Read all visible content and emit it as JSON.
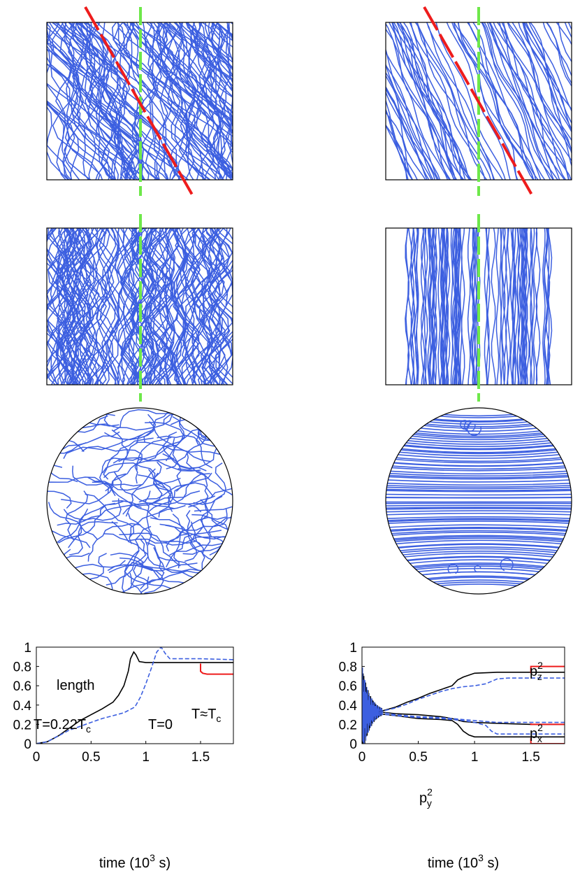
{
  "colors": {
    "tangle": "#3c5fe0",
    "black": "#000000",
    "dashed": "#3c5fe0",
    "marker": "#ee1c1c",
    "guide": "#6ee84a"
  },
  "panels": [
    {
      "id": "top-left",
      "kind": "tangle-rect",
      "random": true
    },
    {
      "id": "top-right",
      "kind": "tangle-rect",
      "random": false
    },
    {
      "id": "mid-left",
      "kind": "tangle-vertical",
      "random": true
    },
    {
      "id": "mid-right",
      "kind": "tangle-vertical",
      "random": false
    },
    {
      "id": "disc-left",
      "kind": "tangle-disc",
      "random": true
    },
    {
      "id": "disc-right",
      "kind": "tangle-disc",
      "random": false
    }
  ],
  "chart_data": [
    {
      "type": "line",
      "xlabel_main": "time (10",
      "xlabel_exp": "3",
      "xlabel_tail": " s)",
      "ylabel": "",
      "xlim": [
        0,
        1.8
      ],
      "ylim": [
        0,
        1
      ],
      "xticks": [
        "0",
        "0.5",
        "1",
        "1.5"
      ],
      "yticks": [
        "0",
        "0.2",
        "0.4",
        "0.6",
        "0.8",
        "1"
      ],
      "annotations": {
        "title": "length",
        "solid_label": "T=0.22T",
        "solid_label_sub": "c",
        "dashed_label": "T=0",
        "red_label": "T≈T",
        "red_label_sub": "c"
      },
      "series": [
        {
          "style": "solid-black",
          "x": [
            0,
            0.1,
            0.2,
            0.3,
            0.4,
            0.5,
            0.6,
            0.7,
            0.75,
            0.8,
            0.84,
            0.86,
            0.89,
            0.91,
            0.94,
            1.0,
            1.2,
            1.4,
            1.6,
            1.8
          ],
          "y": [
            0,
            0.02,
            0.08,
            0.16,
            0.24,
            0.3,
            0.36,
            0.43,
            0.5,
            0.6,
            0.75,
            0.88,
            0.95,
            0.92,
            0.85,
            0.84,
            0.84,
            0.84,
            0.84,
            0.84
          ]
        },
        {
          "style": "dashed-blue",
          "x": [
            0,
            0.1,
            0.2,
            0.3,
            0.4,
            0.5,
            0.6,
            0.7,
            0.8,
            0.9,
            0.95,
            1.0,
            1.05,
            1.1,
            1.14,
            1.18,
            1.22,
            1.3,
            1.5,
            1.8
          ],
          "y": [
            0,
            0.02,
            0.08,
            0.14,
            0.18,
            0.22,
            0.26,
            0.29,
            0.32,
            0.38,
            0.48,
            0.62,
            0.78,
            0.95,
            1.0,
            0.93,
            0.88,
            0.88,
            0.88,
            0.87
          ]
        },
        {
          "style": "red",
          "x": [
            1.5,
            1.5,
            1.52,
            1.56,
            1.6,
            1.8
          ],
          "y": [
            0.83,
            0.75,
            0.73,
            0.72,
            0.72,
            0.72
          ]
        }
      ]
    },
    {
      "type": "line",
      "xlabel_main": "time (10",
      "xlabel_exp": "3",
      "xlabel_tail": " s)",
      "ylabel": "",
      "xlim": [
        0,
        1.8
      ],
      "ylim": [
        0,
        1
      ],
      "xticks": [
        "0",
        "0.5",
        "1",
        "1.5"
      ],
      "yticks": [
        "0",
        "0.2",
        "0.4",
        "0.6",
        "0.8",
        "1"
      ],
      "annotations": {
        "pz": "p",
        "pz_sup": "2",
        "pz_sub": "z",
        "px": "p",
        "px_sup": "2",
        "px_sub": "x",
        "py": "p",
        "py_sup": "2",
        "py_sub": "y"
      },
      "series": [
        {
          "style": "solid-black",
          "name": "pz",
          "x": [
            0.15,
            0.3,
            0.4,
            0.5,
            0.6,
            0.7,
            0.8,
            0.85,
            0.9,
            1.0,
            1.2,
            1.5,
            1.8
          ],
          "y": [
            0.33,
            0.38,
            0.43,
            0.47,
            0.52,
            0.56,
            0.6,
            0.66,
            0.69,
            0.73,
            0.74,
            0.74,
            0.74
          ]
        },
        {
          "style": "dashed-blue",
          "name": "pz",
          "x": [
            0.15,
            0.3,
            0.4,
            0.5,
            0.6,
            0.7,
            0.8,
            0.9,
            1.0,
            1.1,
            1.2,
            1.3,
            1.5,
            1.8
          ],
          "y": [
            0.33,
            0.37,
            0.41,
            0.46,
            0.5,
            0.54,
            0.57,
            0.59,
            0.6,
            0.62,
            0.67,
            0.68,
            0.68,
            0.68
          ]
        },
        {
          "style": "solid-black",
          "name": "px",
          "x": [
            0.15,
            0.3,
            0.5,
            0.7,
            0.8,
            0.9,
            1.0,
            1.2,
            1.5,
            1.8
          ],
          "y": [
            0.33,
            0.31,
            0.3,
            0.28,
            0.26,
            0.23,
            0.22,
            0.21,
            0.2,
            0.2
          ]
        },
        {
          "style": "solid-black",
          "name": "py",
          "x": [
            0.15,
            0.3,
            0.5,
            0.7,
            0.8,
            0.85,
            0.9,
            0.95,
            1.0,
            1.2,
            1.5,
            1.8
          ],
          "y": [
            0.31,
            0.29,
            0.26,
            0.25,
            0.24,
            0.2,
            0.13,
            0.09,
            0.07,
            0.07,
            0.07,
            0.07
          ]
        },
        {
          "style": "dashed-blue",
          "name": "px",
          "x": [
            0.15,
            0.3,
            0.5,
            0.7,
            0.9,
            1.0,
            1.1,
            1.2,
            1.5,
            1.8
          ],
          "y": [
            0.33,
            0.3,
            0.28,
            0.27,
            0.25,
            0.24,
            0.23,
            0.22,
            0.22,
            0.22
          ]
        },
        {
          "style": "dashed-blue",
          "name": "py",
          "x": [
            0.15,
            0.3,
            0.5,
            0.7,
            0.9,
            1.0,
            1.1,
            1.15,
            1.2,
            1.5,
            1.8
          ],
          "y": [
            0.31,
            0.29,
            0.27,
            0.26,
            0.24,
            0.22,
            0.19,
            0.13,
            0.1,
            0.1,
            0.1
          ]
        },
        {
          "style": "red",
          "name": "pz",
          "x": [
            1.5,
            1.5,
            1.55,
            1.8
          ],
          "y": [
            0.73,
            0.8,
            0.8,
            0.8
          ]
        },
        {
          "style": "red",
          "name": "px",
          "x": [
            1.5,
            1.5,
            1.55,
            1.8
          ],
          "y": [
            0.21,
            0.2,
            0.2,
            0.2
          ]
        },
        {
          "style": "red",
          "name": "py",
          "x": [
            1.5,
            1.5,
            1.55,
            1.8
          ],
          "y": [
            0.06,
            0.0,
            0.0,
            0.0
          ]
        }
      ]
    }
  ]
}
